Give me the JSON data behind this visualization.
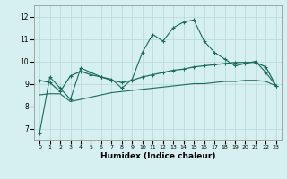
{
  "xlabel": "Humidex (Indice chaleur)",
  "bg_color": "#d6eff0",
  "grid_color": "#b8d8d8",
  "line_color": "#1a6b5a",
  "xlim": [
    -0.5,
    23.5
  ],
  "ylim": [
    6.5,
    12.5
  ],
  "xticks": [
    0,
    1,
    2,
    3,
    4,
    5,
    6,
    7,
    8,
    9,
    10,
    11,
    12,
    13,
    14,
    15,
    16,
    17,
    18,
    19,
    20,
    21,
    22,
    23
  ],
  "yticks": [
    7,
    8,
    9,
    10,
    11,
    12
  ],
  "line1_x": [
    0,
    1,
    2,
    3,
    4,
    5,
    6,
    7,
    8,
    9,
    10,
    11,
    12,
    13,
    14,
    15,
    16,
    17,
    18,
    19,
    20,
    21,
    22,
    23
  ],
  "line1_y": [
    6.8,
    9.3,
    8.8,
    8.3,
    9.7,
    9.5,
    9.3,
    9.2,
    8.8,
    9.2,
    10.4,
    11.2,
    10.9,
    11.5,
    11.75,
    11.85,
    10.9,
    10.4,
    10.1,
    9.8,
    9.9,
    10.0,
    9.5,
    8.9
  ],
  "line2_x": [
    0,
    1,
    2,
    3,
    4,
    5,
    6,
    7,
    8,
    9,
    10,
    11,
    12,
    13,
    14,
    15,
    16,
    17,
    18,
    19,
    20,
    21,
    22,
    23
  ],
  "line2_y": [
    9.15,
    9.05,
    8.65,
    9.35,
    9.55,
    9.4,
    9.3,
    9.15,
    9.05,
    9.15,
    9.3,
    9.4,
    9.5,
    9.6,
    9.65,
    9.75,
    9.8,
    9.85,
    9.9,
    9.95,
    9.95,
    9.95,
    9.75,
    8.9
  ],
  "line3_x": [
    0,
    1,
    2,
    3,
    4,
    5,
    6,
    7,
    8,
    9,
    10,
    11,
    12,
    13,
    14,
    15,
    16,
    17,
    18,
    19,
    20,
    21,
    22,
    23
  ],
  "line3_y": [
    8.5,
    8.55,
    8.55,
    8.2,
    8.3,
    8.4,
    8.5,
    8.6,
    8.65,
    8.7,
    8.75,
    8.8,
    8.85,
    8.9,
    8.95,
    9.0,
    9.0,
    9.05,
    9.1,
    9.1,
    9.15,
    9.15,
    9.1,
    8.9
  ]
}
